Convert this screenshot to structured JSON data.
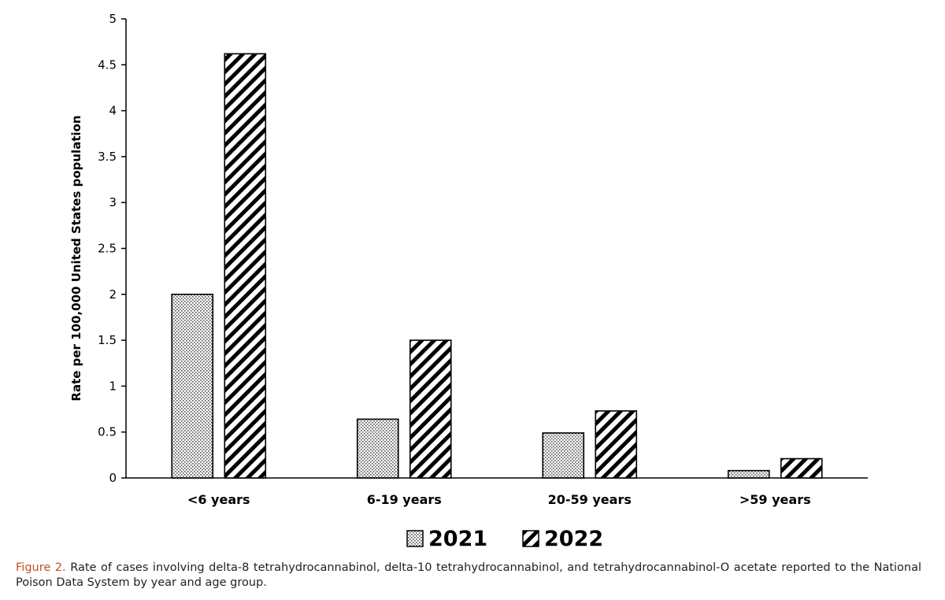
{
  "chart_data": {
    "type": "bar",
    "categories": [
      "<6 years",
      "6-19 years",
      "20-59 years",
      ">59 years"
    ],
    "series": [
      {
        "name": "2021",
        "values": [
          2.0,
          0.64,
          0.49,
          0.08
        ]
      },
      {
        "name": "2022",
        "values": [
          4.62,
          1.5,
          0.73,
          0.21
        ]
      }
    ],
    "ylabel": "Rate per 100,000 United States population",
    "xlabel": "",
    "ylim": [
      0,
      5
    ],
    "yticks": [
      "0",
      "0.5",
      "1",
      "1.5",
      "2",
      "2.5",
      "3",
      "3.5",
      "4",
      "4.5",
      "5"
    ],
    "grid": false,
    "legend_position": "bottom"
  },
  "caption": {
    "label": "Figure 2.",
    "text": "Rate of cases involving delta-8 tetrahydrocannabinol, delta-10 tetrahydrocannabinol, and tetrahydrocannabinol-O acetate reported to the National Poison Data System by year and age group."
  }
}
